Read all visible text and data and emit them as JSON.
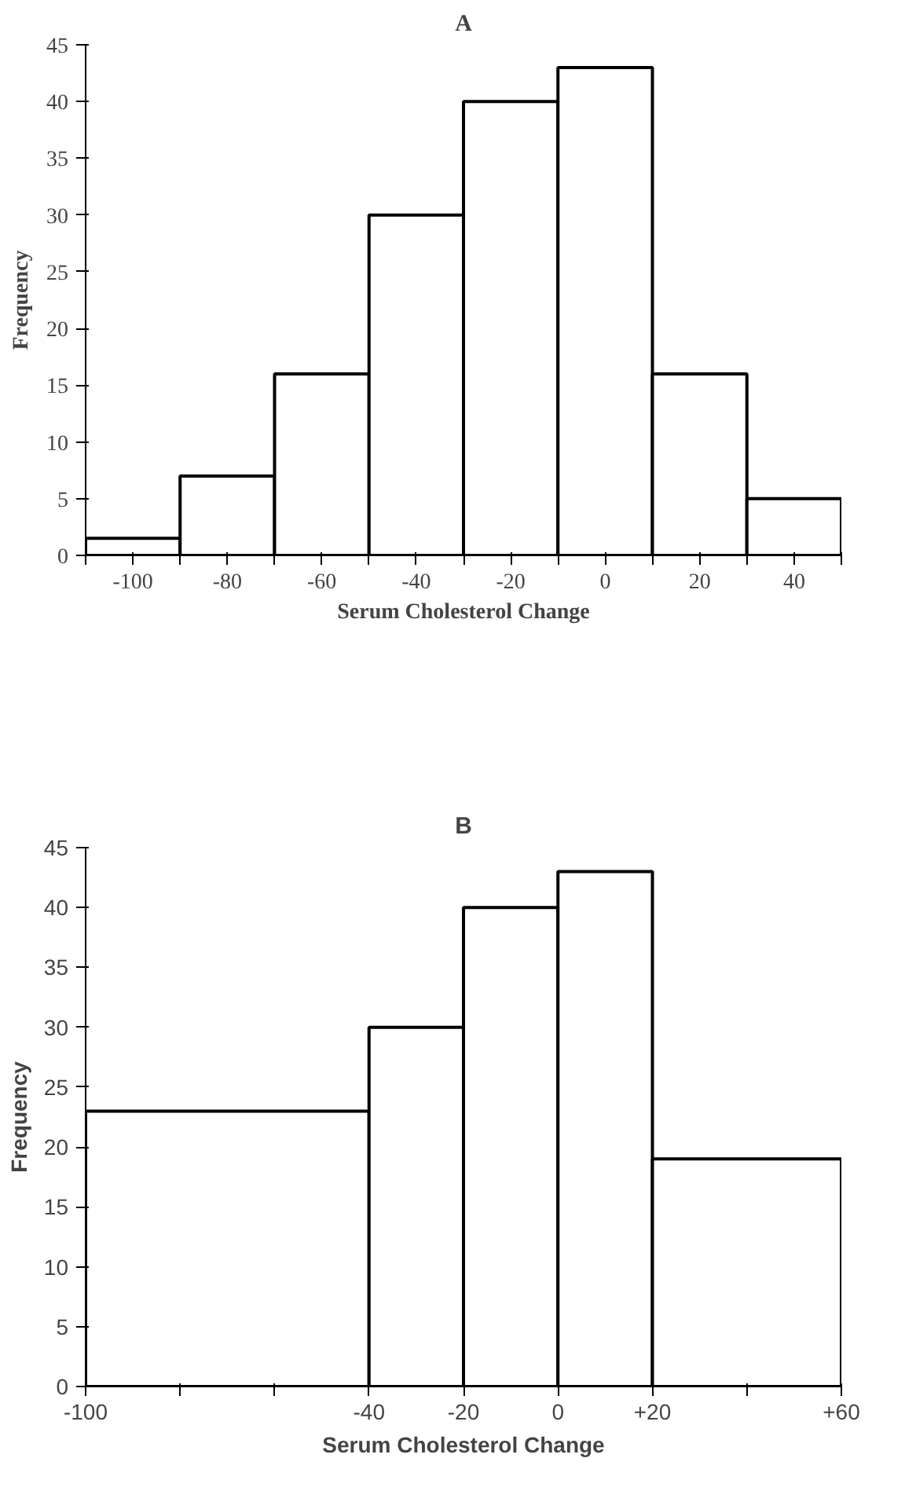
{
  "chart_data": [
    {
      "type": "histogram",
      "title": "A",
      "xlabel": "Serum Cholesterol Change",
      "ylabel": "Frequency",
      "bins": [
        -110,
        -90,
        -70,
        -50,
        -30,
        -10,
        10,
        30,
        50
      ],
      "values": [
        1.5,
        7,
        16,
        30,
        40,
        43,
        16,
        5
      ],
      "color": "#ffffff",
      "xlim": [
        -110,
        50
      ],
      "xticks": [
        {
          "value": -110,
          "label": null
        },
        -100,
        {
          "value": -90,
          "label": null
        },
        -80,
        {
          "value": -70,
          "label": null
        },
        -60,
        {
          "value": -50,
          "label": null
        },
        -40,
        {
          "value": -30,
          "label": null
        },
        -20,
        {
          "value": -10,
          "label": null
        },
        0,
        {
          "value": 10,
          "label": null
        },
        20,
        {
          "value": 30,
          "label": null
        },
        40,
        {
          "value": 50,
          "label": null
        }
      ],
      "ylim": [
        0,
        45
      ],
      "yticks": [
        0,
        5,
        10,
        15,
        20,
        25,
        30,
        35,
        40,
        45
      ],
      "grid": false
    },
    {
      "type": "histogram",
      "title": "B",
      "xlabel": "Serum Cholesterol Change",
      "ylabel": "Frequency",
      "bins": [
        -100,
        -40,
        -20,
        0,
        20,
        60
      ],
      "values": [
        23,
        30,
        40,
        43,
        19
      ],
      "color": "#ffffff",
      "xlim": [
        -100,
        60
      ],
      "xticks": [
        -100,
        {
          "value": -80,
          "label": null
        },
        {
          "value": -60,
          "label": null
        },
        -40,
        -20,
        0,
        {
          "value": 20,
          "label": "+20"
        },
        {
          "value": 40,
          "label": null
        },
        {
          "value": 60,
          "label": "+60"
        }
      ],
      "ylim": [
        0,
        45
      ],
      "yticks": [
        0,
        5,
        10,
        15,
        20,
        25,
        30,
        35,
        40,
        45
      ],
      "grid": false
    }
  ]
}
